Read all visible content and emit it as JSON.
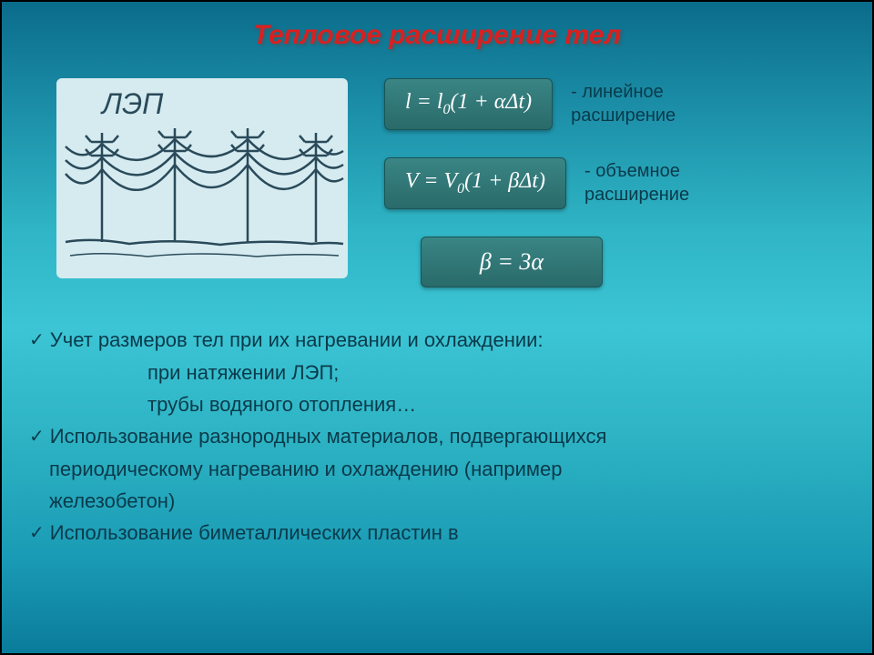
{
  "title": "Тепловое расширение тел",
  "diagram": {
    "label": "ЛЭП",
    "background": "#d5ebf0",
    "line_color": "#2a4a5a"
  },
  "formulas": {
    "linear": {
      "expr_html": "<i>l</i> = <i>l</i><sub>0</sub>(1 + <i>α</i>Δ<i>t</i>)",
      "label_line1": "- линейное",
      "label_line2": "расширение"
    },
    "volume": {
      "expr_html": "<i>V</i> = <i>V</i><sub>0</sub>(1 + <i>β</i>Δ<i>t</i>)",
      "label_line1": "- объемное",
      "label_line2": "расширение"
    },
    "relation": {
      "expr_html": "<i>β</i> = 3<i>α</i>"
    },
    "box_bg_top": "#3a8585",
    "box_bg_bottom": "#2a6a6a",
    "text_color": "#ffffff"
  },
  "bullets": {
    "b1": "Учет размеров тел при их нагревании и охлаждении:",
    "b1_sub1": "при натяжении ЛЭП;",
    "b1_sub2": "трубы водяного отопления…",
    "b2_line1": "Использование разнородных материалов, подвергающихся",
    "b2_line2": "периодическому нагреванию и охлаждению (например",
    "b2_line3": "железобетон)",
    "b3": "Использование биметаллических пластин в"
  },
  "colors": {
    "title_color": "#d92020",
    "text_color": "#0a3a4a",
    "bg_gradient_top": "#0a6b8a",
    "bg_gradient_mid": "#3cc5d5",
    "bg_gradient_bottom": "#0a7b9a"
  },
  "typography": {
    "title_fontsize": 30,
    "body_fontsize": 22,
    "formula_fontsize": 24,
    "label_fontsize": 20
  }
}
